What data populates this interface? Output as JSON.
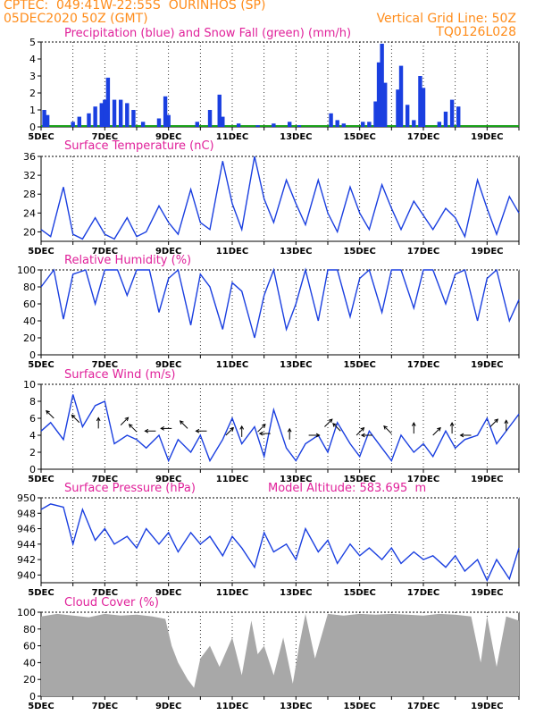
{
  "header": {
    "line1": "CPTEC:  049:41W-22:55S  OURINHOS (SP)",
    "line2": "05DEC2020 50Z (GMT)",
    "grid_note": "Vertical Grid Line: 50Z",
    "run_code": "TQ0126L028"
  },
  "colors": {
    "header": "#ff8c1a",
    "title": "#e0219a",
    "line": "#1a3fe0",
    "snow": "#19a019",
    "cloud": "#a8a8a8"
  },
  "x_ticks": [
    "5DEC",
    "7DEC",
    "9DEC",
    "11DEC",
    "13DEC",
    "15DEC",
    "17DEC",
    "19DEC"
  ],
  "chart_data": [
    {
      "type": "bar",
      "title": "Precipitation (blue) and Snow Fall (green) (mm/h)",
      "x_range_days": [
        5,
        20
      ],
      "ylim": [
        0,
        5
      ],
      "yticks": [
        0,
        1,
        2,
        3,
        4,
        5
      ],
      "series": [
        {
          "name": "Precipitation",
          "color": "#1a3fe0",
          "points": [
            [
              5.1,
              1.0
            ],
            [
              5.2,
              0.7
            ],
            [
              6.0,
              0.3
            ],
            [
              6.2,
              0.6
            ],
            [
              6.5,
              0.8
            ],
            [
              6.7,
              1.2
            ],
            [
              6.9,
              1.4
            ],
            [
              7.0,
              1.6
            ],
            [
              7.1,
              2.9
            ],
            [
              7.3,
              1.6
            ],
            [
              7.5,
              1.6
            ],
            [
              7.7,
              1.4
            ],
            [
              7.9,
              1.0
            ],
            [
              8.2,
              0.3
            ],
            [
              8.7,
              0.5
            ],
            [
              8.9,
              1.8
            ],
            [
              9.0,
              0.7
            ],
            [
              9.9,
              0.3
            ],
            [
              10.3,
              1.0
            ],
            [
              10.6,
              1.9
            ],
            [
              10.7,
              0.6
            ],
            [
              11.2,
              0.2
            ],
            [
              11.8,
              0.1
            ],
            [
              12.3,
              0.2
            ],
            [
              12.8,
              0.3
            ],
            [
              13.1,
              0.1
            ],
            [
              14.1,
              0.8
            ],
            [
              14.3,
              0.4
            ],
            [
              14.5,
              0.2
            ],
            [
              15.1,
              0.3
            ],
            [
              15.3,
              0.3
            ],
            [
              15.5,
              1.5
            ],
            [
              15.6,
              3.8
            ],
            [
              15.7,
              4.9
            ],
            [
              15.8,
              2.6
            ],
            [
              16.2,
              2.2
            ],
            [
              16.3,
              3.6
            ],
            [
              16.5,
              1.3
            ],
            [
              16.7,
              0.4
            ],
            [
              16.9,
              3.0
            ],
            [
              17.0,
              2.3
            ],
            [
              17.5,
              0.3
            ],
            [
              17.7,
              0.9
            ],
            [
              17.9,
              1.6
            ],
            [
              18.1,
              1.2
            ]
          ]
        },
        {
          "name": "Snow Fall",
          "color": "#19a019",
          "points": []
        }
      ]
    },
    {
      "type": "line",
      "title": "Surface Temperature (nC)",
      "ylim": [
        18,
        36
      ],
      "yticks": [
        20,
        24,
        28,
        32,
        36
      ],
      "x": [
        5.0,
        5.3,
        5.7,
        6.0,
        6.3,
        6.7,
        7.0,
        7.3,
        7.7,
        8.0,
        8.3,
        8.7,
        9.0,
        9.3,
        9.7,
        10.0,
        10.3,
        10.7,
        11.0,
        11.3,
        11.7,
        12.0,
        12.3,
        12.7,
        13.0,
        13.3,
        13.7,
        14.0,
        14.3,
        14.7,
        15.0,
        15.3,
        15.7,
        16.0,
        16.3,
        16.7,
        17.0,
        17.3,
        17.7,
        18.0,
        18.3,
        18.7,
        19.0,
        19.3,
        19.7,
        20.0
      ],
      "y": [
        20.5,
        19.0,
        29.5,
        19.5,
        18.5,
        23.0,
        19.5,
        18.5,
        23.0,
        19.0,
        20.0,
        25.5,
        22.0,
        19.5,
        29.0,
        22.0,
        20.5,
        35.0,
        26.0,
        20.5,
        36.0,
        27.0,
        22.0,
        31.0,
        26.0,
        21.5,
        31.0,
        24.0,
        20.0,
        29.5,
        24.0,
        20.5,
        30.0,
        25.0,
        20.5,
        26.5,
        23.5,
        20.5,
        25.0,
        23.0,
        19.0,
        31.0,
        25.0,
        19.5,
        27.5,
        24.0
      ]
    },
    {
      "type": "line",
      "title": "Relative Humidity (%)",
      "ylim": [
        0,
        100
      ],
      "yticks": [
        0,
        20,
        40,
        60,
        80,
        100
      ],
      "x": [
        5.0,
        5.4,
        5.7,
        6.0,
        6.4,
        6.7,
        7.0,
        7.4,
        7.7,
        8.0,
        8.4,
        8.7,
        9.0,
        9.3,
        9.7,
        10.0,
        10.3,
        10.7,
        11.0,
        11.3,
        11.7,
        12.0,
        12.3,
        12.7,
        13.0,
        13.3,
        13.7,
        14.0,
        14.3,
        14.7,
        15.0,
        15.3,
        15.7,
        16.0,
        16.3,
        16.7,
        17.0,
        17.3,
        17.7,
        18.0,
        18.3,
        18.7,
        19.0,
        19.3,
        19.7,
        20.0
      ],
      "y": [
        80,
        100,
        42,
        95,
        100,
        60,
        100,
        100,
        70,
        100,
        100,
        50,
        90,
        100,
        35,
        95,
        80,
        30,
        85,
        75,
        20,
        70,
        100,
        30,
        60,
        100,
        40,
        100,
        100,
        45,
        90,
        100,
        50,
        100,
        100,
        55,
        100,
        100,
        60,
        95,
        100,
        40,
        90,
        100,
        40,
        65
      ]
    },
    {
      "type": "line",
      "title": "Surface Wind (m/s)",
      "ylim": [
        0,
        10
      ],
      "yticks": [
        0,
        2,
        4,
        6,
        8,
        10
      ],
      "x": [
        5.0,
        5.3,
        5.7,
        6.0,
        6.3,
        6.7,
        7.0,
        7.3,
        7.7,
        8.0,
        8.3,
        8.7,
        9.0,
        9.3,
        9.7,
        10.0,
        10.3,
        10.7,
        11.0,
        11.3,
        11.7,
        12.0,
        12.3,
        12.7,
        13.0,
        13.3,
        13.7,
        14.0,
        14.3,
        14.7,
        15.0,
        15.3,
        15.7,
        16.0,
        16.3,
        16.7,
        17.0,
        17.3,
        17.7,
        18.0,
        18.3,
        18.7,
        19.0,
        19.3,
        19.7,
        20.0
      ],
      "y": [
        4.5,
        5.5,
        3.5,
        8.8,
        5.0,
        7.5,
        8.0,
        3.0,
        4.0,
        3.5,
        2.5,
        4.0,
        1.0,
        3.5,
        2.0,
        4.0,
        1.0,
        3.5,
        6.0,
        3.0,
        5.0,
        1.5,
        7.0,
        2.5,
        1.0,
        3.0,
        4.0,
        2.0,
        5.5,
        3.0,
        1.5,
        4.5,
        2.5,
        1.0,
        4.0,
        2.0,
        3.0,
        1.5,
        4.5,
        2.5,
        3.5,
        4.0,
        6.0,
        3.0,
        5.0,
        6.5
      ],
      "arrows": [
        [
          5.4,
          6.0,
          "NW"
        ],
        [
          6.2,
          5.5,
          "NW"
        ],
        [
          6.8,
          4.8,
          "N"
        ],
        [
          7.5,
          5.2,
          "NE"
        ],
        [
          8.0,
          4.4,
          "NW"
        ],
        [
          8.6,
          4.5,
          "W"
        ],
        [
          9.1,
          4.8,
          "W"
        ],
        [
          9.6,
          4.8,
          "NW"
        ],
        [
          10.2,
          4.5,
          "W"
        ],
        [
          10.8,
          4.0,
          "NE"
        ],
        [
          11.3,
          3.8,
          "N"
        ],
        [
          11.8,
          4.4,
          "NE"
        ],
        [
          12.2,
          4.2,
          "W"
        ],
        [
          12.8,
          3.5,
          "N"
        ],
        [
          13.4,
          4.0,
          "E"
        ],
        [
          13.9,
          5.0,
          "NE"
        ],
        [
          14.4,
          4.5,
          "NW"
        ],
        [
          14.9,
          4.0,
          "NE"
        ],
        [
          15.4,
          4.0,
          "W"
        ],
        [
          16.0,
          4.2,
          "NW"
        ],
        [
          16.7,
          4.2,
          "N"
        ],
        [
          17.3,
          4.0,
          "NE"
        ],
        [
          17.9,
          4.2,
          "N"
        ],
        [
          18.5,
          4.0,
          "W"
        ],
        [
          19.1,
          5.0,
          "NE"
        ],
        [
          19.6,
          4.5,
          "N"
        ]
      ]
    },
    {
      "type": "line",
      "title": "Surface Pressure (hPa)",
      "annotation": "Model Altitude: 583.695  m",
      "ylim": [
        939,
        950
      ],
      "yticks": [
        940,
        942,
        944,
        946,
        948,
        950
      ],
      "x": [
        5.0,
        5.3,
        5.7,
        6.0,
        6.3,
        6.7,
        7.0,
        7.3,
        7.7,
        8.0,
        8.3,
        8.7,
        9.0,
        9.3,
        9.7,
        10.0,
        10.3,
        10.7,
        11.0,
        11.3,
        11.7,
        12.0,
        12.3,
        12.7,
        13.0,
        13.3,
        13.7,
        14.0,
        14.3,
        14.7,
        15.0,
        15.3,
        15.7,
        16.0,
        16.3,
        16.7,
        17.0,
        17.3,
        17.7,
        18.0,
        18.3,
        18.7,
        19.0,
        19.3,
        19.7,
        20.0
      ],
      "y": [
        948.5,
        949.2,
        948.8,
        944.0,
        948.5,
        944.5,
        946.0,
        944.0,
        945.0,
        943.5,
        946.0,
        944.0,
        945.5,
        943.0,
        945.5,
        944.0,
        945.0,
        942.5,
        945.0,
        943.5,
        941.0,
        945.5,
        943.0,
        944.0,
        942.0,
        946.0,
        943.0,
        944.5,
        941.5,
        944.0,
        942.5,
        943.5,
        942.0,
        943.5,
        941.5,
        943.0,
        942.0,
        942.5,
        941.0,
        942.5,
        940.5,
        942.0,
        939.3,
        942.0,
        939.5,
        943.5
      ]
    },
    {
      "type": "area",
      "title": "Cloud Cover (%)",
      "ylim": [
        0,
        100
      ],
      "yticks": [
        0,
        20,
        40,
        60,
        80,
        100
      ],
      "x": [
        5.0,
        5.5,
        6.0,
        6.5,
        7.0,
        7.5,
        8.0,
        8.5,
        8.9,
        9.1,
        9.3,
        9.6,
        9.8,
        10.0,
        10.3,
        10.6,
        11.0,
        11.3,
        11.6,
        11.8,
        12.0,
        12.3,
        12.6,
        12.9,
        13.1,
        13.3,
        13.6,
        14.0,
        14.5,
        15.0,
        15.5,
        16.0,
        16.5,
        17.0,
        17.5,
        18.0,
        18.5,
        18.8,
        19.0,
        19.3,
        19.6,
        20.0
      ],
      "y": [
        95,
        98,
        96,
        94,
        98,
        96,
        97,
        95,
        92,
        60,
        40,
        20,
        10,
        45,
        60,
        35,
        70,
        25,
        90,
        50,
        60,
        25,
        70,
        15,
        60,
        98,
        45,
        98,
        96,
        98,
        97,
        98,
        97,
        96,
        98,
        97,
        95,
        40,
        95,
        35,
        95,
        90
      ]
    }
  ]
}
